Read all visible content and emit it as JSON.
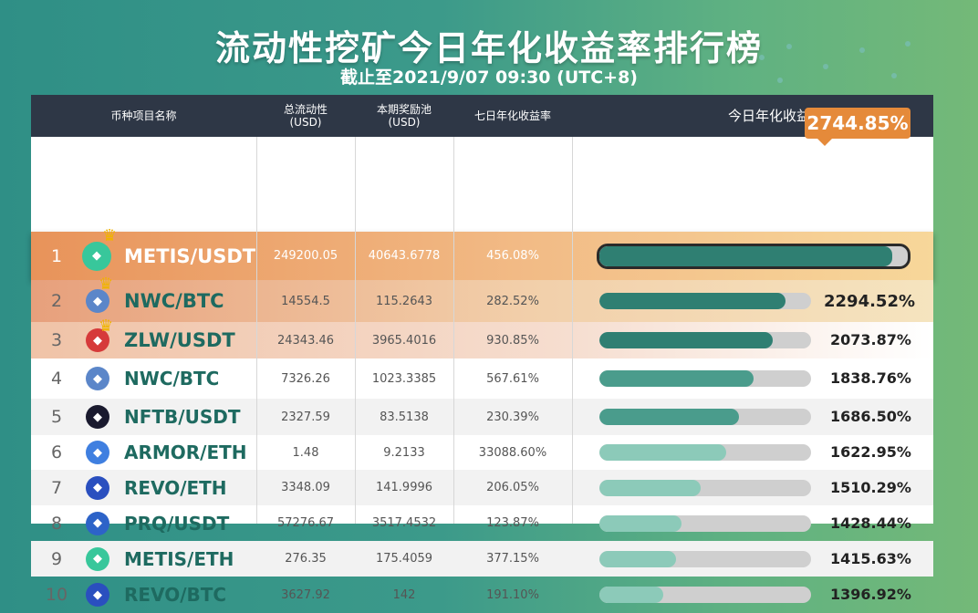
{
  "title": "流动性挖矿今日年化收益率排行榜",
  "subtitle": "截止至2021/9/07 09:30 (UTC+8)",
  "headers": {
    "name": "币种项目名称",
    "liquidity": "总流动性\n(USD)",
    "pool": "本期奖励池\n(USD)",
    "seven_day": "七日年化收益率",
    "today": "今日年化收益率"
  },
  "rows": [
    {
      "rank": "1",
      "pair": "METIS/USDT",
      "liquidity": "249200.05",
      "pool": "40643.6778",
      "seven": "456.08%",
      "today": "2744.85%",
      "level": 0.95,
      "icon": "metis-icon",
      "coin_color": "#38c79b"
    },
    {
      "rank": "2",
      "pair": "NWC/BTC",
      "liquidity": "14554.5",
      "pool": "115.2643",
      "seven": "282.52%",
      "today": "2294.52%",
      "level": 0.88,
      "icon": "nwc-icon",
      "coin_color": "#5b86c9"
    },
    {
      "rank": "3",
      "pair": "ZLW/USDT",
      "liquidity": "24343.46",
      "pool": "3965.4016",
      "seven": "930.85%",
      "today": "2073.87%",
      "level": 0.82,
      "icon": "zlw-icon",
      "coin_color": "#d63a3a"
    },
    {
      "rank": "4",
      "pair": "NWC/BTC",
      "liquidity": "7326.26",
      "pool": "1023.3385",
      "seven": "567.61%",
      "today": "1838.76%",
      "level": 0.73,
      "icon": "nwc-icon",
      "coin_color": "#5b86c9"
    },
    {
      "rank": "5",
      "pair": "NFTB/USDT",
      "liquidity": "2327.59",
      "pool": "83.5138",
      "seven": "230.39%",
      "today": "1686.50%",
      "level": 0.66,
      "icon": "nftb-icon",
      "coin_color": "#1a1a2e"
    },
    {
      "rank": "6",
      "pair": "ARMOR/ETH",
      "liquidity": "1.48",
      "pool": "9.2133",
      "seven": "33088.60%",
      "today": "1622.95%",
      "level": 0.6,
      "icon": "armor-icon",
      "coin_color": "#3f7fe0"
    },
    {
      "rank": "7",
      "pair": "REVO/ETH",
      "liquidity": "3348.09",
      "pool": "141.9996",
      "seven": "206.05%",
      "today": "1510.29%",
      "level": 0.48,
      "icon": "revo-icon",
      "coin_color": "#2a4fbf"
    },
    {
      "rank": "8",
      "pair": "PRQ/USDT",
      "liquidity": "57276.67",
      "pool": "3517.4532",
      "seven": "123.87%",
      "today": "1428.44%",
      "level": 0.39,
      "icon": "prq-icon",
      "coin_color": "#2d63c8"
    },
    {
      "rank": "9",
      "pair": "METIS/ETH",
      "liquidity": "276.35",
      "pool": "175.4059",
      "seven": "377.15%",
      "today": "1415.63%",
      "level": 0.36,
      "icon": "metis-icon",
      "coin_color": "#38c79b"
    },
    {
      "rank": "10",
      "pair": "REVO/BTC",
      "liquidity": "3627.92",
      "pool": "142",
      "seven": "191.10%",
      "today": "1396.92%",
      "level": 0.3,
      "icon": "revo-icon",
      "coin_color": "#2a4fbf"
    }
  ],
  "colors": {
    "header_bg": "#2e3746",
    "bar_dark": "#2f7f72",
    "bar_mid": "#4a9c8c",
    "bar_light": "#8ccab9",
    "callout": "#e58a3a"
  }
}
